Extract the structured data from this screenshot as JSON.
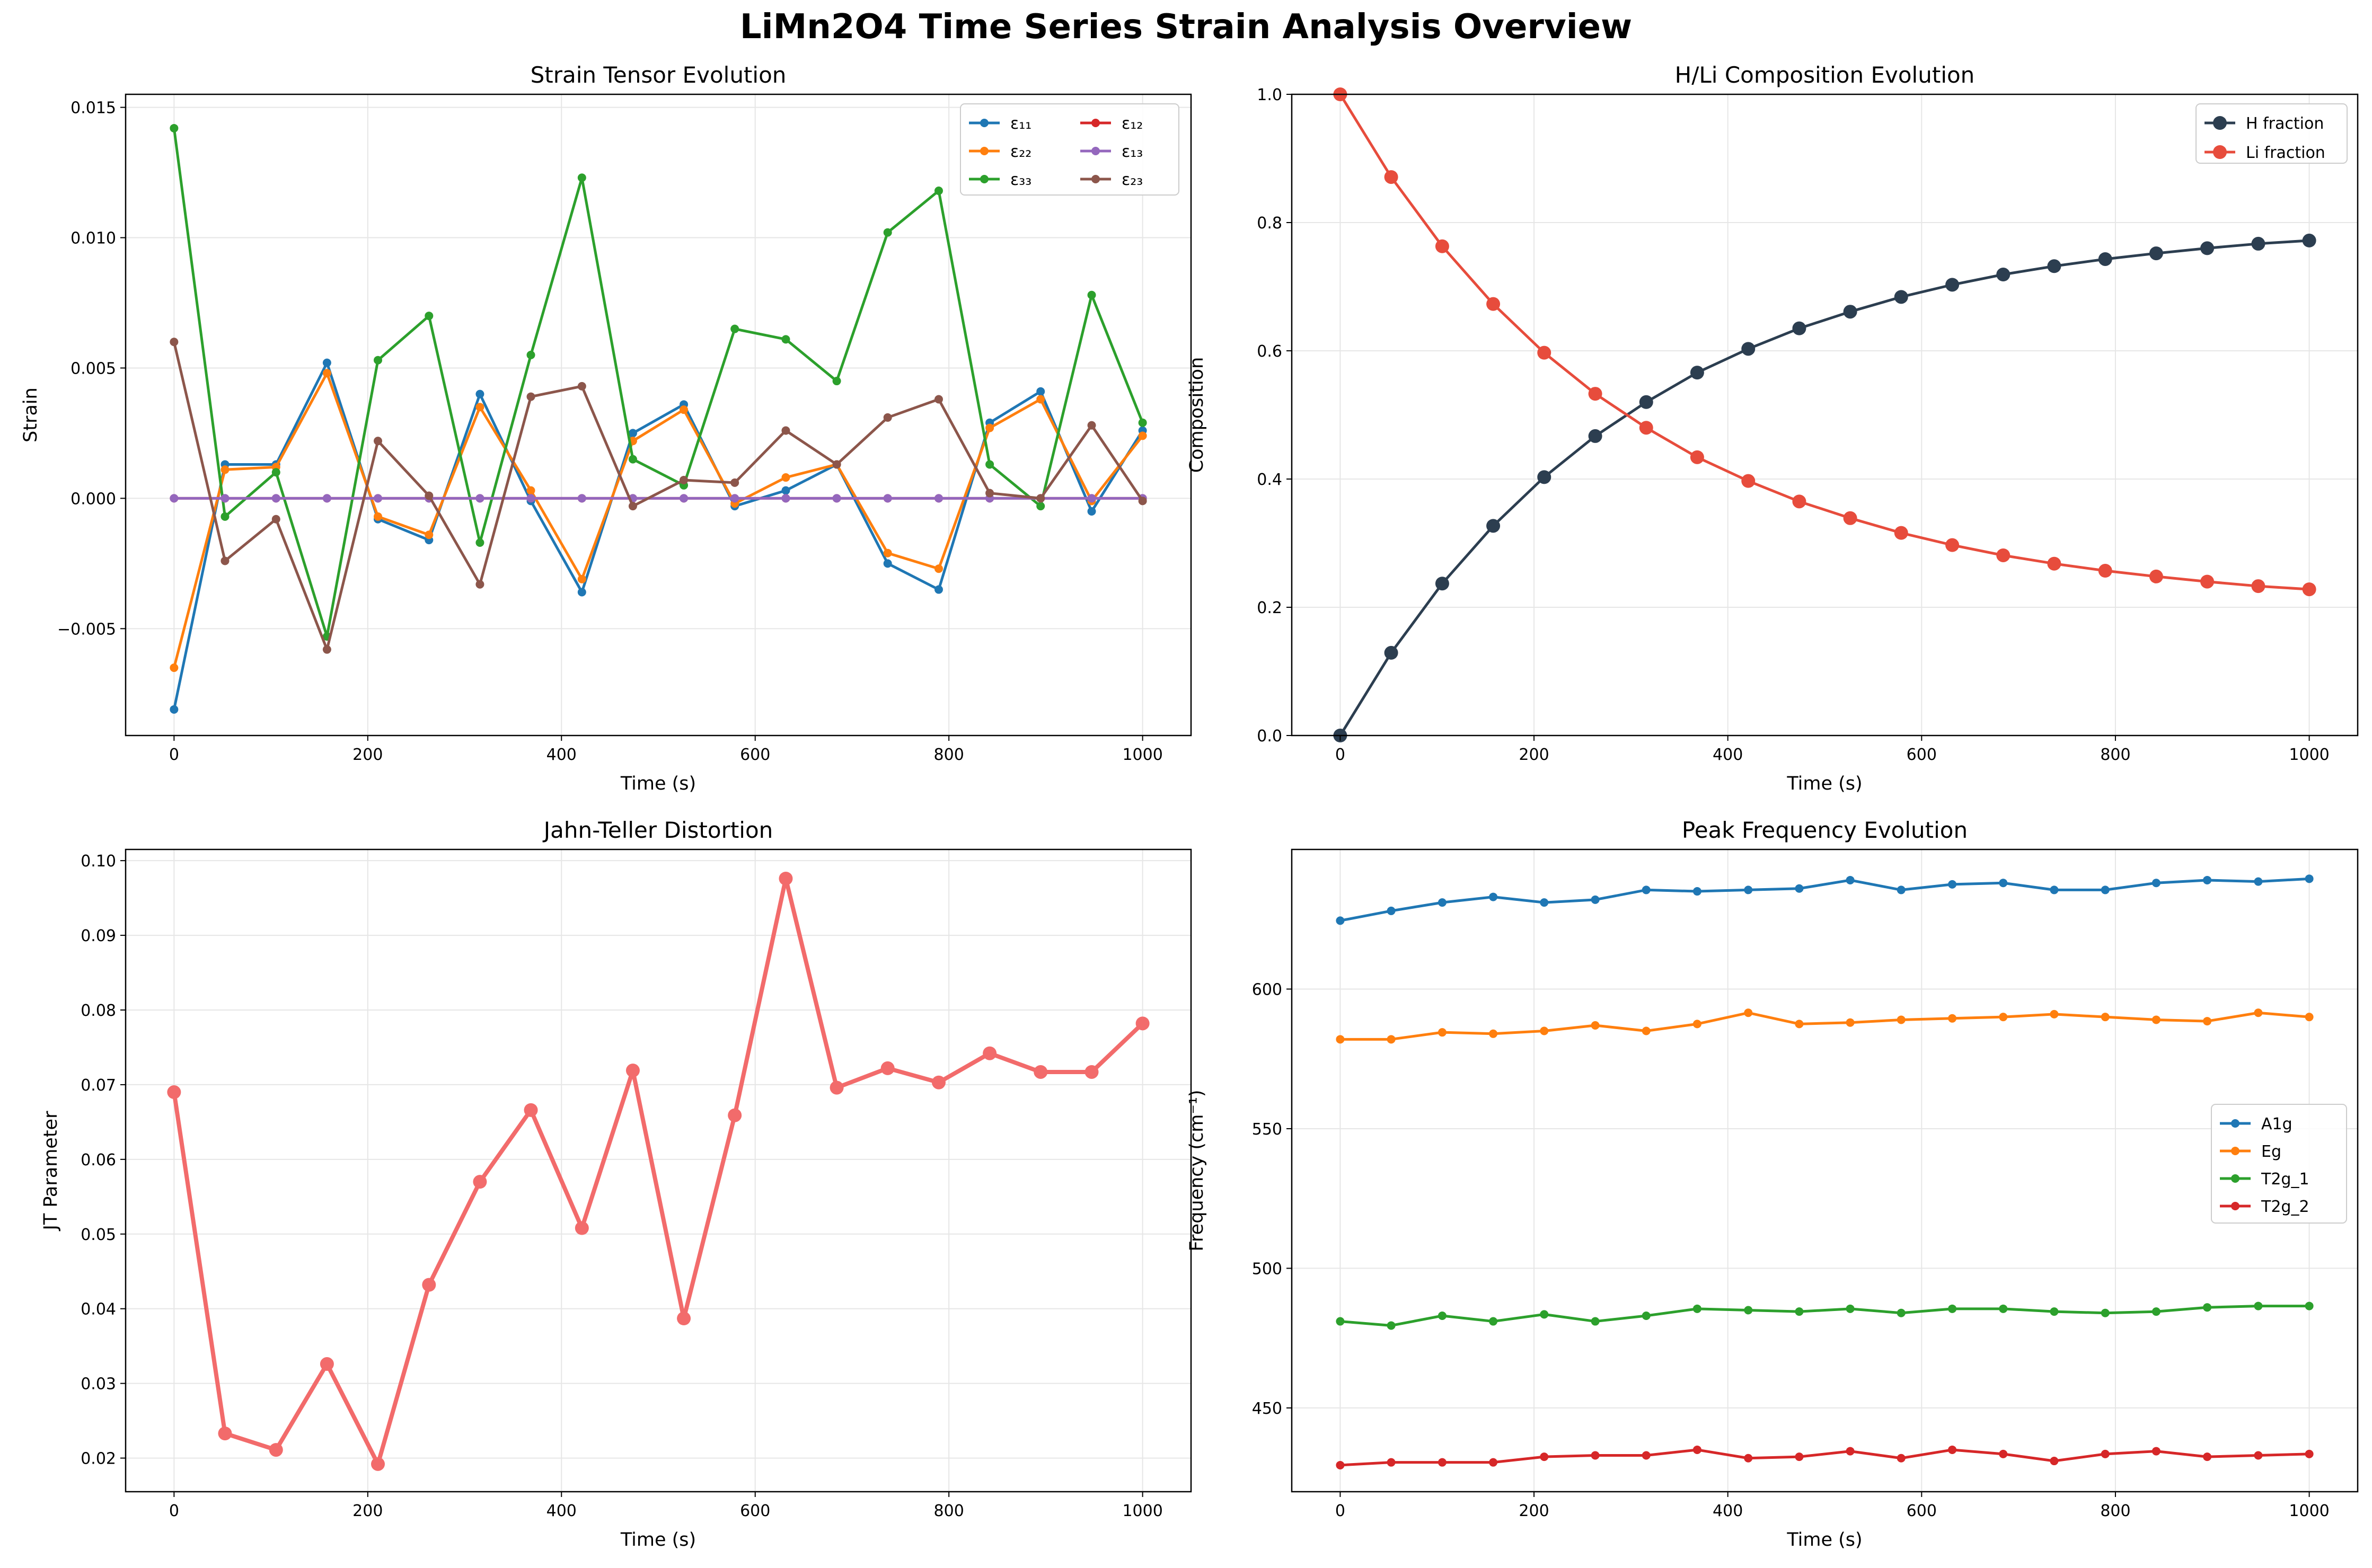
{
  "figure_title": "LiMn2O4 Time Series Strain Analysis Overview",
  "chart_data": [
    {
      "id": "strain",
      "type": "line",
      "title": "Strain Tensor Evolution",
      "xlabel": "Time (s)",
      "ylabel": "Strain",
      "xlim": [
        -50,
        1050
      ],
      "ylim": [
        -0.0091,
        0.0155
      ],
      "xticks": [
        0,
        200,
        400,
        600,
        800,
        1000
      ],
      "xtick_labels": [
        "0",
        "200",
        "400",
        "600",
        "800",
        "1000"
      ],
      "yticks": [
        -0.005,
        0,
        0.005,
        0.01,
        0.015
      ],
      "ytick_labels": [
        "−0.005",
        "0.000",
        "0.005",
        "0.010",
        "0.015"
      ],
      "grid": true,
      "legend": "top-right",
      "legend_columns": 2,
      "x": [
        0,
        52.6,
        105.3,
        157.9,
        210.5,
        263.2,
        315.8,
        368.4,
        421.1,
        473.7,
        526.3,
        578.9,
        631.6,
        684.2,
        736.8,
        789.5,
        842.1,
        894.7,
        947.4,
        1000
      ],
      "series": [
        {
          "name": "ε₁₁",
          "color": "#1f77b4",
          "values": [
            -0.0081,
            0.0013,
            0.0013,
            0.0052,
            -0.0008,
            -0.0016,
            0.004,
            -0.0001,
            -0.0036,
            0.0025,
            0.0036,
            -0.0003,
            0.0003,
            0.0013,
            -0.0025,
            -0.0035,
            0.0029,
            0.0041,
            -0.0005,
            0.0026
          ]
        },
        {
          "name": "ε₂₂",
          "color": "#ff7f0e",
          "values": [
            -0.0065,
            0.0011,
            0.0012,
            0.0048,
            -0.0007,
            -0.0014,
            0.0035,
            0.0003,
            -0.0031,
            0.0022,
            0.0034,
            -0.0002,
            0.0008,
            0.0013,
            -0.0021,
            -0.0027,
            0.0027,
            0.0038,
            -0.0001,
            0.0024
          ]
        },
        {
          "name": "ε₃₃",
          "color": "#2ca02c",
          "values": [
            0.0142,
            -0.0007,
            0.001,
            -0.0053,
            0.0053,
            0.007,
            -0.0017,
            0.0055,
            0.0123,
            0.0015,
            0.0005,
            0.0065,
            0.0061,
            0.0045,
            0.0102,
            0.0118,
            0.0013,
            -0.0003,
            0.0078,
            0.0029
          ]
        },
        {
          "name": "ε₁₂",
          "color": "#d62728",
          "values": [
            0,
            0,
            0,
            0,
            0,
            0,
            0,
            0,
            0,
            0,
            0,
            0,
            0,
            0,
            0,
            0,
            0,
            0,
            0,
            0
          ]
        },
        {
          "name": "ε₁₃",
          "color": "#9467bd",
          "values": [
            0,
            0,
            0,
            0,
            0,
            0,
            0,
            0,
            0,
            0,
            0,
            0,
            0,
            0,
            0,
            0,
            0,
            0,
            0,
            0
          ]
        },
        {
          "name": "ε₂₃",
          "color": "#8c564b",
          "values": [
            0.006,
            -0.0024,
            -0.0008,
            -0.0058,
            0.0022,
            0.0001,
            -0.0033,
            0.0039,
            0.0043,
            -0.0003,
            0.0007,
            0.0006,
            0.0026,
            0.0013,
            0.0031,
            0.0038,
            0.0002,
            0.0,
            0.0028,
            -0.0001
          ]
        }
      ]
    },
    {
      "id": "composition",
      "type": "line",
      "title": "H/Li Composition Evolution",
      "xlabel": "Time (s)",
      "ylabel": "Composition",
      "xlim": [
        -50,
        1050
      ],
      "ylim": [
        0,
        1.0
      ],
      "xticks": [
        0,
        200,
        400,
        600,
        800,
        1000
      ],
      "xtick_labels": [
        "0",
        "200",
        "400",
        "600",
        "800",
        "1000"
      ],
      "yticks": [
        0,
        0.2,
        0.4,
        0.6,
        0.8,
        1.0
      ],
      "ytick_labels": [
        "0.0",
        "0.2",
        "0.4",
        "0.6",
        "0.8",
        "1.0"
      ],
      "grid": true,
      "legend": "top-right",
      "legend_columns": 1,
      "x": [
        0,
        52.6,
        105.3,
        157.9,
        210.5,
        263.2,
        315.8,
        368.4,
        421.1,
        473.7,
        526.3,
        578.9,
        631.6,
        684.2,
        736.8,
        789.5,
        842.1,
        894.7,
        947.4,
        1000
      ],
      "series": [
        {
          "name": "H fraction",
          "color": "#2c3e50",
          "values": [
            0.0,
            0.129,
            0.237,
            0.327,
            0.403,
            0.467,
            0.52,
            0.566,
            0.603,
            0.635,
            0.661,
            0.684,
            0.703,
            0.719,
            0.732,
            0.743,
            0.752,
            0.76,
            0.767,
            0.772
          ]
        },
        {
          "name": "Li fraction",
          "color": "#e74c3c",
          "values": [
            1.0,
            0.871,
            0.763,
            0.673,
            0.597,
            0.533,
            0.48,
            0.434,
            0.397,
            0.365,
            0.339,
            0.316,
            0.297,
            0.281,
            0.268,
            0.257,
            0.248,
            0.24,
            0.233,
            0.228
          ]
        }
      ]
    },
    {
      "id": "jt",
      "type": "line",
      "title": "Jahn-Teller Distortion",
      "xlabel": "Time (s)",
      "ylabel": "JT Parameter",
      "xlim": [
        -50,
        1050
      ],
      "ylim": [
        0.0155,
        0.1015
      ],
      "xticks": [
        0,
        200,
        400,
        600,
        800,
        1000
      ],
      "xtick_labels": [
        "0",
        "200",
        "400",
        "600",
        "800",
        "1000"
      ],
      "yticks": [
        0.02,
        0.03,
        0.04,
        0.05,
        0.06,
        0.07,
        0.08,
        0.09,
        0.1
      ],
      "ytick_labels": [
        "0.02",
        "0.03",
        "0.04",
        "0.05",
        "0.06",
        "0.07",
        "0.08",
        "0.09",
        "0.10"
      ],
      "grid": true,
      "legend": "none",
      "x": [
        0,
        52.6,
        105.3,
        157.9,
        210.5,
        263.2,
        315.8,
        368.4,
        421.1,
        473.7,
        526.3,
        578.9,
        631.6,
        684.2,
        736.8,
        789.5,
        842.1,
        894.7,
        947.4,
        1000
      ],
      "series": [
        {
          "color": "#f26b6b",
          "values": [
            0.069,
            0.0233,
            0.0211,
            0.0326,
            0.0192,
            0.0432,
            0.057,
            0.0666,
            0.0508,
            0.0719,
            0.0387,
            0.0659,
            0.0976,
            0.0696,
            0.0722,
            0.0703,
            0.0742,
            0.0717,
            0.0717,
            0.0782
          ]
        }
      ]
    },
    {
      "id": "peaks",
      "type": "line",
      "title": "Peak Frequency Evolution",
      "xlabel": "Time (s)",
      "ylabel": "Frequency (cm⁻¹)",
      "xlim": [
        -50,
        1050
      ],
      "ylim": [
        420,
        650
      ],
      "xticks": [
        0,
        200,
        400,
        600,
        800,
        1000
      ],
      "xtick_labels": [
        "0",
        "200",
        "400",
        "600",
        "800",
        "1000"
      ],
      "yticks": [
        450,
        500,
        550,
        600
      ],
      "ytick_labels": [
        "450",
        "500",
        "550",
        "600"
      ],
      "grid": true,
      "legend": "center-right",
      "legend_columns": 1,
      "x": [
        0,
        52.6,
        105.3,
        157.9,
        210.5,
        263.2,
        315.8,
        368.4,
        421.1,
        473.7,
        526.3,
        578.9,
        631.6,
        684.2,
        736.8,
        789.5,
        842.1,
        894.7,
        947.4,
        1000
      ],
      "series": [
        {
          "name": "A1g",
          "color": "#1f77b4",
          "values": [
            624.5,
            628.0,
            631.0,
            633.0,
            631.0,
            632.0,
            635.5,
            635.0,
            635.5,
            636.0,
            639.0,
            635.5,
            637.5,
            638.0,
            635.5,
            635.5,
            638.0,
            639.0,
            638.5,
            639.5
          ]
        },
        {
          "name": "Eg",
          "color": "#ff7f0e",
          "values": [
            582.0,
            582.0,
            584.5,
            584.0,
            585.0,
            587.0,
            585.0,
            587.5,
            591.5,
            587.5,
            588.0,
            589.0,
            589.5,
            590.0,
            591.0,
            590.0,
            589.0,
            588.5,
            591.5,
            590.0
          ]
        },
        {
          "name": "T2g_1",
          "color": "#2ca02c",
          "values": [
            481.0,
            479.5,
            483.0,
            481.0,
            483.5,
            481.0,
            483.0,
            485.5,
            485.0,
            484.5,
            485.5,
            484.0,
            485.5,
            485.5,
            484.5,
            484.0,
            484.5,
            486.0,
            486.5,
            486.5
          ]
        },
        {
          "name": "T2g_2",
          "color": "#d62728",
          "values": [
            429.5,
            430.5,
            430.5,
            430.5,
            432.5,
            433.0,
            433.0,
            435.0,
            432.0,
            432.5,
            434.5,
            432.0,
            435.0,
            433.5,
            431.0,
            433.5,
            434.5,
            432.5,
            433.0,
            433.5
          ]
        }
      ]
    }
  ]
}
